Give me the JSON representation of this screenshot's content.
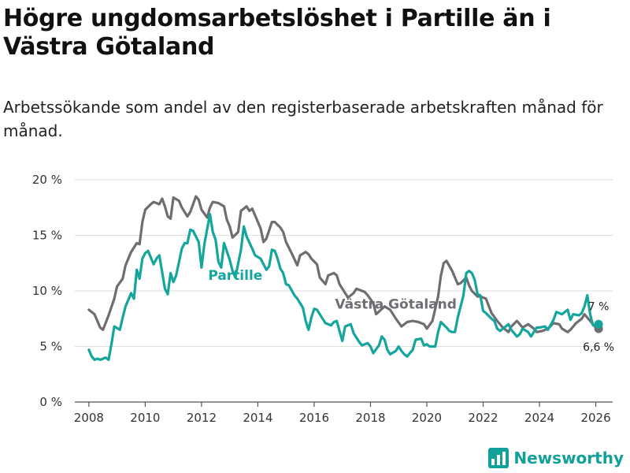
{
  "title": "Högre ungdomsarbetslöshet i Partille än i Västra Götaland",
  "subtitle": "Arbetssökande som andel av den registerbaserade arbetskraften månad för månad.",
  "brand": "Newsworthy",
  "colors": {
    "partille": "#14a59c",
    "vastra": "#6f6d72",
    "grid": "#dedede",
    "axis": "#555555"
  },
  "chart_data": {
    "type": "line",
    "title": "Högre ungdomsarbetslöshet i Partille än i Västra Götaland",
    "xlabel": "",
    "ylabel": "",
    "xlim": [
      2007.5,
      2026.6
    ],
    "ylim": [
      0,
      20
    ],
    "yticks": [
      0,
      5,
      10,
      15,
      20
    ],
    "ytick_labels": [
      "0 %",
      "5 %",
      "10 %",
      "15 %",
      "20 %"
    ],
    "xticks": [
      2008,
      2010,
      2012,
      2014,
      2016,
      2018,
      2020,
      2022,
      2024,
      2026
    ],
    "xtick_labels": [
      "2008",
      "2010",
      "2012",
      "2014",
      "2016",
      "2018",
      "2020",
      "2022",
      "2024",
      "2026"
    ],
    "grid": "horizontal",
    "legend": "inline labels",
    "series": [
      {
        "name": "Västra Götaland",
        "label_at": [
          2018.9,
          8.4
        ],
        "end_label": "6,6 %",
        "points": [
          [
            2008.0,
            8.3
          ],
          [
            2008.2,
            7.9
          ],
          [
            2008.4,
            6.7
          ],
          [
            2008.5,
            6.5
          ],
          [
            2008.7,
            7.8
          ],
          [
            2008.9,
            9.3
          ],
          [
            2009.0,
            10.4
          ],
          [
            2009.2,
            11.1
          ],
          [
            2009.3,
            12.3
          ],
          [
            2009.5,
            13.5
          ],
          [
            2009.7,
            14.3
          ],
          [
            2009.8,
            14.2
          ],
          [
            2009.9,
            16.2
          ],
          [
            2010.0,
            17.3
          ],
          [
            2010.2,
            17.8
          ],
          [
            2010.3,
            18.0
          ],
          [
            2010.5,
            17.8
          ],
          [
            2010.6,
            18.3
          ],
          [
            2010.7,
            17.6
          ],
          [
            2010.8,
            16.7
          ],
          [
            2010.9,
            16.5
          ],
          [
            2011.0,
            18.4
          ],
          [
            2011.2,
            18.1
          ],
          [
            2011.3,
            17.5
          ],
          [
            2011.5,
            16.7
          ],
          [
            2011.6,
            17.1
          ],
          [
            2011.8,
            18.5
          ],
          [
            2011.9,
            18.2
          ],
          [
            2012.0,
            17.3
          ],
          [
            2012.2,
            16.6
          ],
          [
            2012.3,
            17.5
          ],
          [
            2012.4,
            18.0
          ],
          [
            2012.6,
            17.9
          ],
          [
            2012.8,
            17.6
          ],
          [
            2012.9,
            16.4
          ],
          [
            2013.0,
            15.8
          ],
          [
            2013.1,
            14.8
          ],
          [
            2013.3,
            15.3
          ],
          [
            2013.4,
            17.2
          ],
          [
            2013.6,
            17.6
          ],
          [
            2013.7,
            17.2
          ],
          [
            2013.8,
            17.4
          ],
          [
            2013.9,
            16.8
          ],
          [
            2014.1,
            15.6
          ],
          [
            2014.2,
            14.4
          ],
          [
            2014.3,
            14.7
          ],
          [
            2014.5,
            16.2
          ],
          [
            2014.6,
            16.2
          ],
          [
            2014.8,
            15.7
          ],
          [
            2014.9,
            15.3
          ],
          [
            2015.0,
            14.4
          ],
          [
            2015.2,
            13.4
          ],
          [
            2015.4,
            12.3
          ],
          [
            2015.5,
            13.2
          ],
          [
            2015.7,
            13.5
          ],
          [
            2015.8,
            13.3
          ],
          [
            2015.9,
            12.9
          ],
          [
            2016.1,
            12.4
          ],
          [
            2016.2,
            11.2
          ],
          [
            2016.4,
            10.6
          ],
          [
            2016.5,
            11.4
          ],
          [
            2016.7,
            11.6
          ],
          [
            2016.8,
            11.4
          ],
          [
            2016.9,
            10.6
          ],
          [
            2017.0,
            10.2
          ],
          [
            2017.2,
            9.4
          ],
          [
            2017.4,
            9.8
          ],
          [
            2017.5,
            10.2
          ],
          [
            2017.7,
            10.0
          ],
          [
            2017.8,
            9.9
          ],
          [
            2017.9,
            9.6
          ],
          [
            2018.1,
            8.9
          ],
          [
            2018.2,
            7.9
          ],
          [
            2018.5,
            8.6
          ],
          [
            2018.7,
            8.3
          ],
          [
            2018.9,
            7.5
          ],
          [
            2019.1,
            6.8
          ],
          [
            2019.3,
            7.2
          ],
          [
            2019.5,
            7.3
          ],
          [
            2019.7,
            7.2
          ],
          [
            2019.9,
            7.0
          ],
          [
            2020.0,
            6.6
          ],
          [
            2020.2,
            7.3
          ],
          [
            2020.4,
            9.5
          ],
          [
            2020.5,
            11.4
          ],
          [
            2020.6,
            12.5
          ],
          [
            2020.7,
            12.7
          ],
          [
            2020.9,
            11.8
          ],
          [
            2021.1,
            10.6
          ],
          [
            2021.2,
            10.7
          ],
          [
            2021.4,
            11.2
          ],
          [
            2021.5,
            10.5
          ],
          [
            2021.6,
            10.0
          ],
          [
            2021.8,
            9.5
          ],
          [
            2021.9,
            9.5
          ],
          [
            2022.1,
            9.3
          ],
          [
            2022.3,
            8.0
          ],
          [
            2022.5,
            7.3
          ],
          [
            2022.7,
            6.7
          ],
          [
            2022.9,
            6.3
          ],
          [
            2023.0,
            6.8
          ],
          [
            2023.2,
            7.3
          ],
          [
            2023.4,
            6.7
          ],
          [
            2023.6,
            7.0
          ],
          [
            2023.8,
            6.6
          ],
          [
            2023.9,
            6.3
          ],
          [
            2024.1,
            6.4
          ],
          [
            2024.3,
            6.6
          ],
          [
            2024.5,
            7.1
          ],
          [
            2024.7,
            7.0
          ],
          [
            2024.8,
            6.6
          ],
          [
            2025.0,
            6.3
          ],
          [
            2025.1,
            6.5
          ],
          [
            2025.3,
            7.1
          ],
          [
            2025.5,
            7.5
          ],
          [
            2025.6,
            7.9
          ],
          [
            2025.8,
            7.3
          ],
          [
            2026.0,
            6.7
          ],
          [
            2026.1,
            6.6
          ]
        ]
      },
      {
        "name": "Partille",
        "label_at": [
          2013.2,
          11.0
        ],
        "end_label": "7 %",
        "points": [
          [
            2008.0,
            4.7
          ],
          [
            2008.1,
            4.1
          ],
          [
            2008.2,
            3.8
          ],
          [
            2008.3,
            3.9
          ],
          [
            2008.4,
            3.8
          ],
          [
            2008.6,
            4.0
          ],
          [
            2008.7,
            3.8
          ],
          [
            2008.8,
            5.2
          ],
          [
            2008.9,
            6.8
          ],
          [
            2009.1,
            6.5
          ],
          [
            2009.2,
            7.6
          ],
          [
            2009.3,
            8.6
          ],
          [
            2009.5,
            9.8
          ],
          [
            2009.6,
            9.3
          ],
          [
            2009.7,
            11.9
          ],
          [
            2009.8,
            11.1
          ],
          [
            2009.9,
            12.9
          ],
          [
            2010.0,
            13.4
          ],
          [
            2010.1,
            13.6
          ],
          [
            2010.3,
            12.4
          ],
          [
            2010.4,
            12.9
          ],
          [
            2010.5,
            13.2
          ],
          [
            2010.6,
            11.7
          ],
          [
            2010.7,
            10.2
          ],
          [
            2010.8,
            9.7
          ],
          [
            2010.9,
            11.6
          ],
          [
            2011.0,
            10.8
          ],
          [
            2011.1,
            11.4
          ],
          [
            2011.3,
            13.8
          ],
          [
            2011.4,
            14.3
          ],
          [
            2011.5,
            14.3
          ],
          [
            2011.6,
            15.5
          ],
          [
            2011.7,
            15.4
          ],
          [
            2011.9,
            14.4
          ],
          [
            2012.0,
            12.1
          ],
          [
            2012.1,
            14.2
          ],
          [
            2012.3,
            16.9
          ],
          [
            2012.4,
            15.3
          ],
          [
            2012.5,
            14.6
          ],
          [
            2012.6,
            12.6
          ],
          [
            2012.7,
            12.1
          ],
          [
            2012.8,
            14.3
          ],
          [
            2013.0,
            12.8
          ],
          [
            2013.1,
            11.8
          ],
          [
            2013.2,
            11.2
          ],
          [
            2013.4,
            13.7
          ],
          [
            2013.5,
            15.8
          ],
          [
            2013.6,
            14.9
          ],
          [
            2013.8,
            13.8
          ],
          [
            2013.9,
            13.2
          ],
          [
            2014.1,
            12.9
          ],
          [
            2014.3,
            11.9
          ],
          [
            2014.4,
            12.2
          ],
          [
            2014.5,
            13.7
          ],
          [
            2014.6,
            13.6
          ],
          [
            2014.7,
            12.9
          ],
          [
            2014.8,
            12.0
          ],
          [
            2014.9,
            11.6
          ],
          [
            2015.0,
            10.6
          ],
          [
            2015.1,
            10.5
          ],
          [
            2015.3,
            9.6
          ],
          [
            2015.4,
            9.3
          ],
          [
            2015.6,
            8.5
          ],
          [
            2015.7,
            7.3
          ],
          [
            2015.8,
            6.5
          ],
          [
            2015.9,
            7.6
          ],
          [
            2016.0,
            8.4
          ],
          [
            2016.1,
            8.3
          ],
          [
            2016.3,
            7.5
          ],
          [
            2016.4,
            7.1
          ],
          [
            2016.6,
            6.9
          ],
          [
            2016.7,
            7.2
          ],
          [
            2016.8,
            7.3
          ],
          [
            2016.9,
            6.4
          ],
          [
            2017.0,
            5.5
          ],
          [
            2017.1,
            6.8
          ],
          [
            2017.3,
            7.0
          ],
          [
            2017.4,
            6.2
          ],
          [
            2017.5,
            5.8
          ],
          [
            2017.6,
            5.4
          ],
          [
            2017.7,
            5.1
          ],
          [
            2017.9,
            5.3
          ],
          [
            2018.0,
            5.0
          ],
          [
            2018.1,
            4.4
          ],
          [
            2018.3,
            5.1
          ],
          [
            2018.4,
            5.9
          ],
          [
            2018.5,
            5.6
          ],
          [
            2018.6,
            4.7
          ],
          [
            2018.7,
            4.3
          ],
          [
            2018.9,
            4.6
          ],
          [
            2019.0,
            5.0
          ],
          [
            2019.1,
            4.6
          ],
          [
            2019.2,
            4.3
          ],
          [
            2019.3,
            4.1
          ],
          [
            2019.5,
            4.7
          ],
          [
            2019.6,
            5.6
          ],
          [
            2019.8,
            5.7
          ],
          [
            2019.9,
            5.1
          ],
          [
            2020.0,
            5.2
          ],
          [
            2020.1,
            5.0
          ],
          [
            2020.3,
            5.0
          ],
          [
            2020.4,
            6.3
          ],
          [
            2020.5,
            7.2
          ],
          [
            2020.7,
            6.7
          ],
          [
            2020.8,
            6.4
          ],
          [
            2020.9,
            6.3
          ],
          [
            2021.0,
            6.3
          ],
          [
            2021.1,
            7.6
          ],
          [
            2021.3,
            9.6
          ],
          [
            2021.4,
            11.6
          ],
          [
            2021.5,
            11.8
          ],
          [
            2021.6,
            11.6
          ],
          [
            2021.7,
            11.0
          ],
          [
            2021.8,
            9.7
          ],
          [
            2021.9,
            9.6
          ],
          [
            2022.0,
            8.2
          ],
          [
            2022.1,
            8.0
          ],
          [
            2022.3,
            7.5
          ],
          [
            2022.4,
            7.3
          ],
          [
            2022.5,
            6.6
          ],
          [
            2022.6,
            6.4
          ],
          [
            2022.8,
            6.8
          ],
          [
            2022.9,
            7.0
          ],
          [
            2023.0,
            6.5
          ],
          [
            2023.2,
            5.9
          ],
          [
            2023.3,
            6.1
          ],
          [
            2023.4,
            6.6
          ],
          [
            2023.6,
            6.3
          ],
          [
            2023.7,
            5.9
          ],
          [
            2023.9,
            6.7
          ],
          [
            2024.0,
            6.7
          ],
          [
            2024.2,
            6.8
          ],
          [
            2024.3,
            6.5
          ],
          [
            2024.5,
            7.4
          ],
          [
            2024.6,
            8.1
          ],
          [
            2024.8,
            7.9
          ],
          [
            2025.0,
            8.3
          ],
          [
            2025.1,
            7.4
          ],
          [
            2025.2,
            7.9
          ],
          [
            2025.4,
            7.8
          ],
          [
            2025.5,
            8.0
          ],
          [
            2025.6,
            8.6
          ],
          [
            2025.7,
            9.6
          ],
          [
            2025.8,
            7.9
          ],
          [
            2025.9,
            6.9
          ],
          [
            2026.0,
            6.9
          ],
          [
            2026.1,
            7.0
          ]
        ]
      }
    ]
  }
}
